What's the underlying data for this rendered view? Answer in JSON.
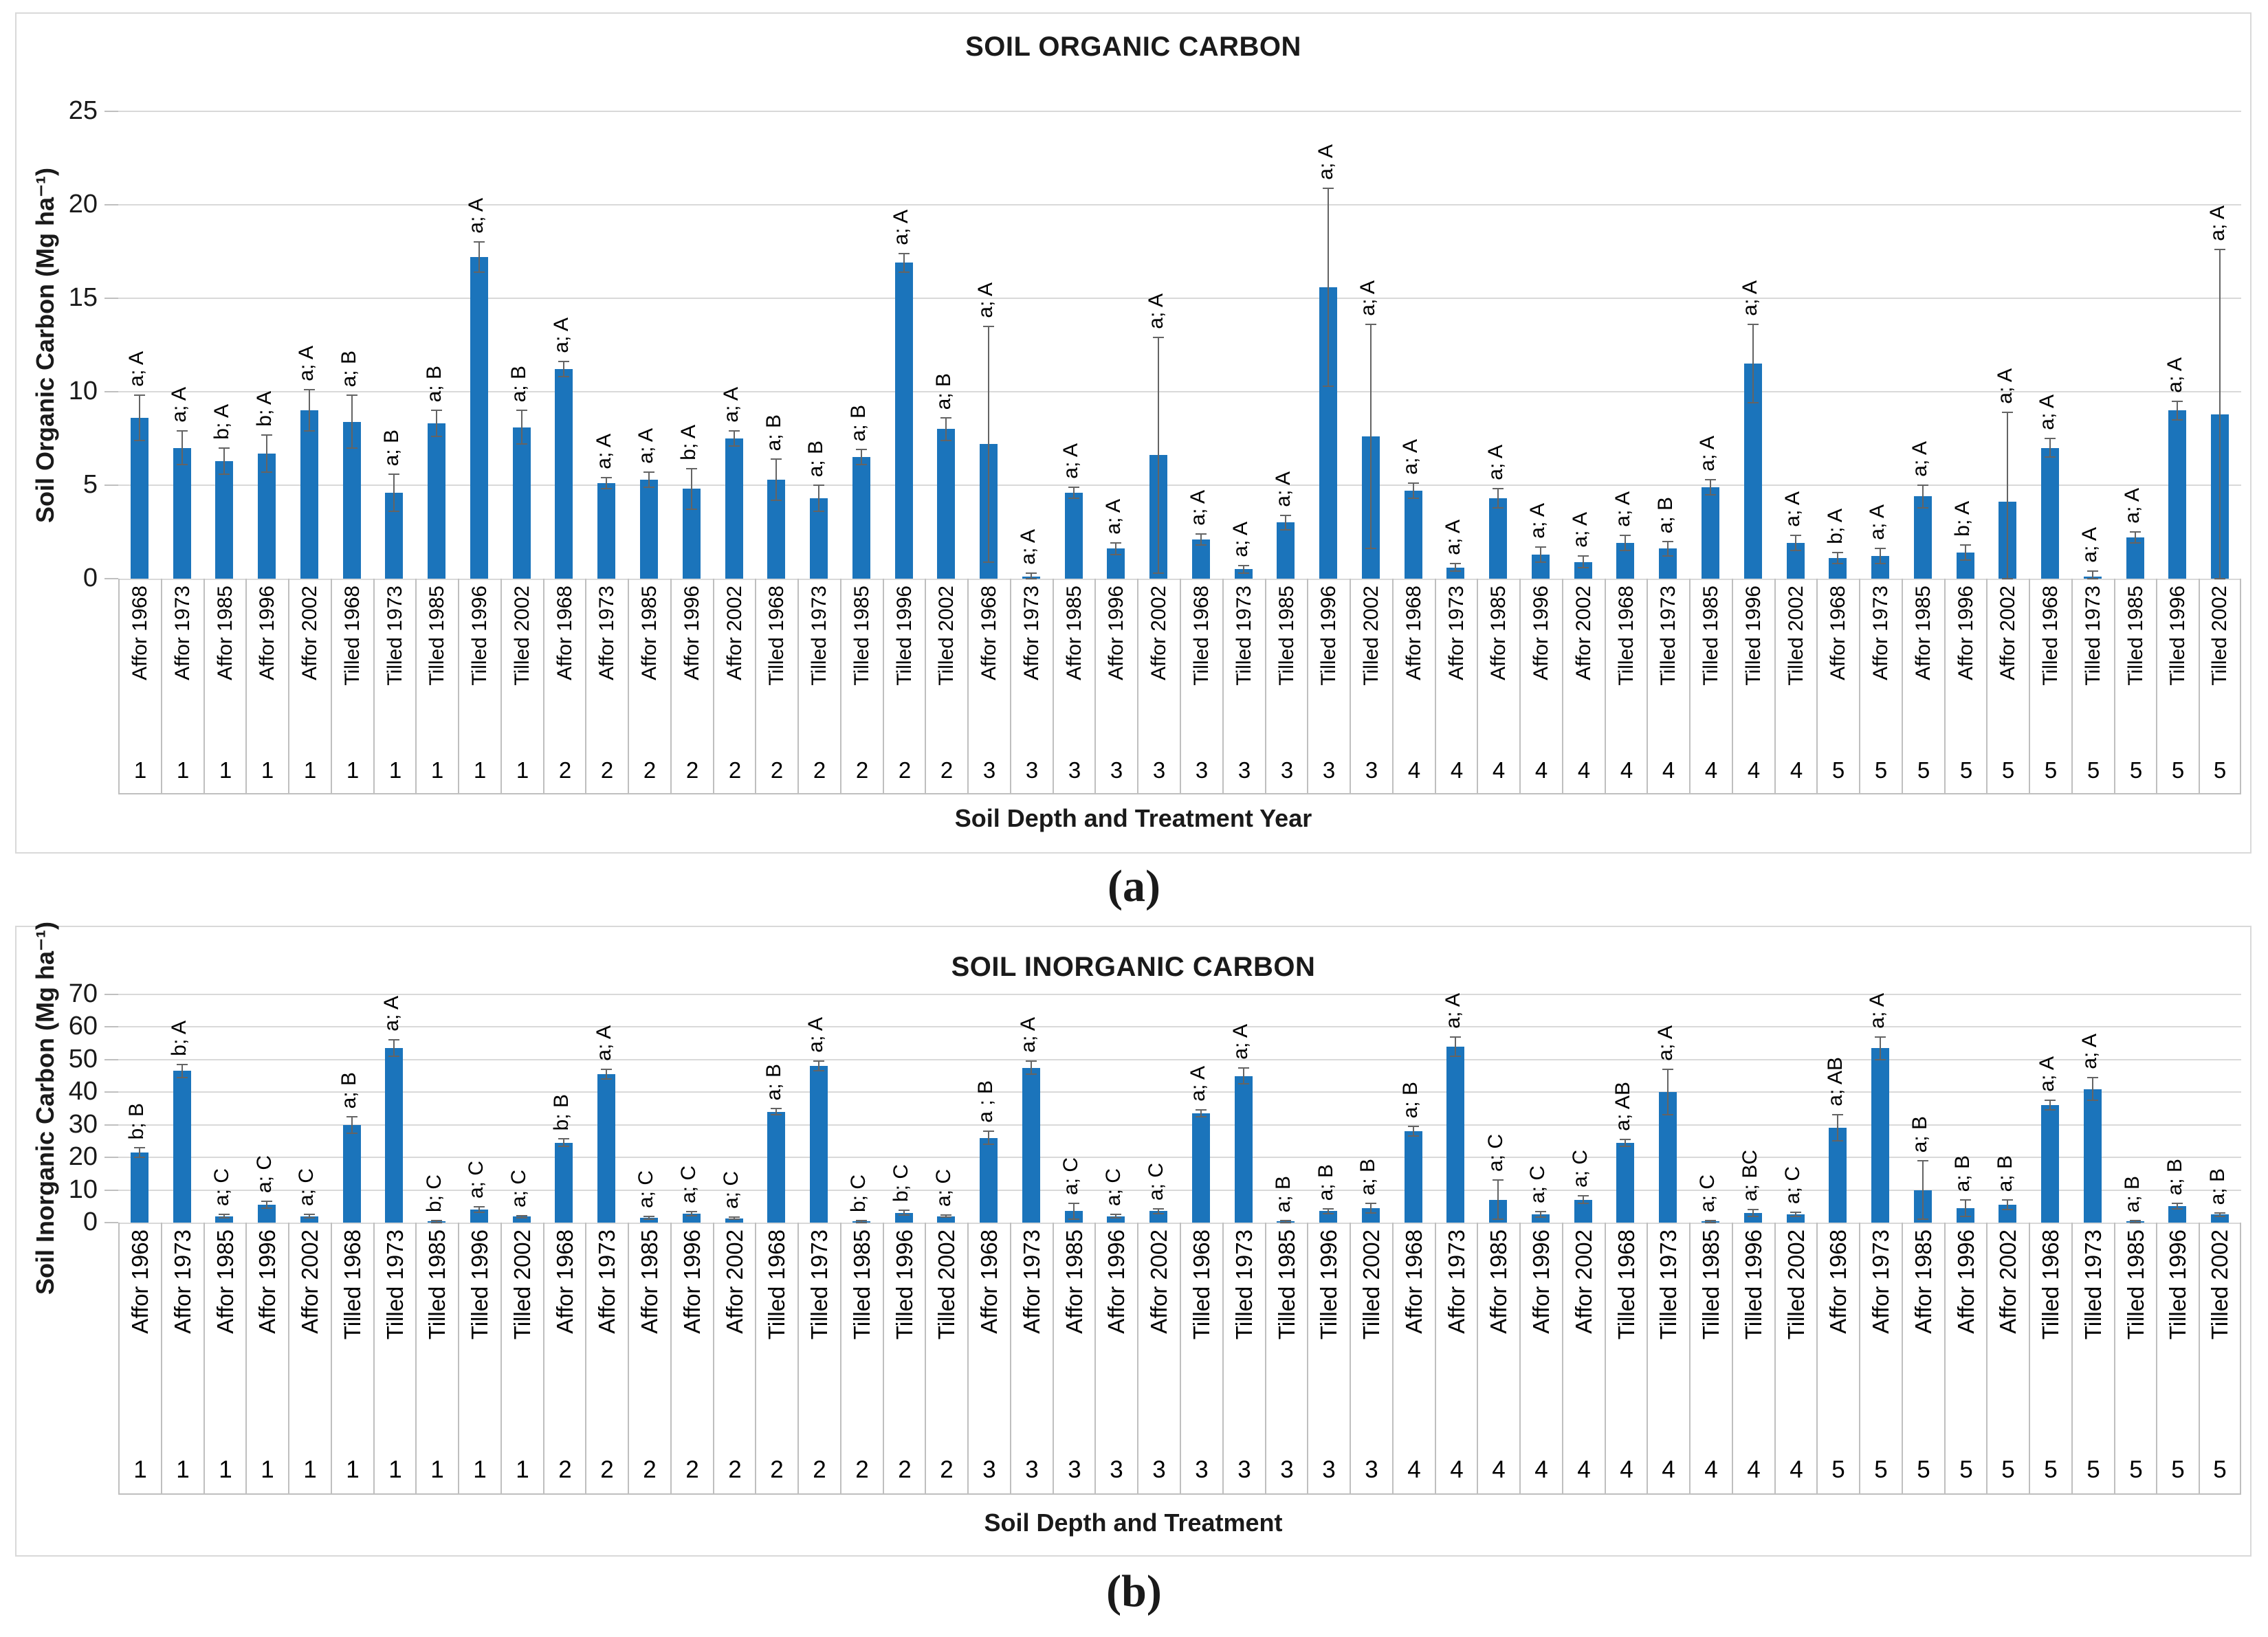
{
  "figure": {
    "caption_a": "(a)",
    "caption_b": "(b)"
  },
  "colors": {
    "bar": "#1b74bb",
    "gridline": "#d9d9d9",
    "cell_border": "#bfbfbf",
    "error_bar": "#646464",
    "text": "#000000"
  },
  "chart_data": [
    {
      "type": "bar",
      "title": "SOIL ORGANIC CARBON",
      "ylabel": "Soil Organic Carbon (Mg ha⁻¹)",
      "xlabel": "Soil Depth and Treatment Year",
      "ylim": [
        0,
        25
      ],
      "yticks": [
        "0",
        "5",
        "10",
        "15",
        "20",
        "25"
      ],
      "grid": true,
      "legend": "none",
      "bars": [
        {
          "label": "Affor 1968",
          "depth": "1",
          "value": 8.6,
          "err": 1.2,
          "note": "a; A"
        },
        {
          "label": "Affor 1973",
          "depth": "1",
          "value": 7.0,
          "err": 0.9,
          "note": "a; A"
        },
        {
          "label": "Affor 1985",
          "depth": "1",
          "value": 6.3,
          "err": 0.7,
          "note": "b; A"
        },
        {
          "label": "Affor 1996",
          "depth": "1",
          "value": 6.7,
          "err": 1.0,
          "note": "b; A"
        },
        {
          "label": "Affor 2002",
          "depth": "1",
          "value": 9.0,
          "err": 1.1,
          "note": "a; A"
        },
        {
          "label": "Tilled 1968",
          "depth": "1",
          "value": 8.4,
          "err": 1.4,
          "note": "a; B"
        },
        {
          "label": "Tilled 1973",
          "depth": "1",
          "value": 4.6,
          "err": 1.0,
          "note": "a; B"
        },
        {
          "label": "Tilled 1985",
          "depth": "1",
          "value": 8.3,
          "err": 0.7,
          "note": "a; B"
        },
        {
          "label": "Tilled 1996",
          "depth": "1",
          "value": 17.2,
          "err": 0.8,
          "note": "a; A"
        },
        {
          "label": "Tilled 2002",
          "depth": "1",
          "value": 8.1,
          "err": 0.9,
          "note": "a; B"
        },
        {
          "label": "Affor 1968",
          "depth": "2",
          "value": 11.2,
          "err": 0.4,
          "note": "a; A"
        },
        {
          "label": "Affor 1973",
          "depth": "2",
          "value": 5.1,
          "err": 0.3,
          "note": "a; A"
        },
        {
          "label": "Affor 1985",
          "depth": "2",
          "value": 5.3,
          "err": 0.4,
          "note": "a; A"
        },
        {
          "label": "Affor 1996",
          "depth": "2",
          "value": 4.8,
          "err": 1.1,
          "note": "b; A"
        },
        {
          "label": "Affor 2002",
          "depth": "2",
          "value": 7.5,
          "err": 0.4,
          "note": "a; A"
        },
        {
          "label": "Tilled 1968",
          "depth": "2",
          "value": 5.3,
          "err": 1.1,
          "note": "a; B"
        },
        {
          "label": "Tilled 1973",
          "depth": "2",
          "value": 4.3,
          "err": 0.7,
          "note": "a; B"
        },
        {
          "label": "Tilled 1985",
          "depth": "2",
          "value": 6.5,
          "err": 0.4,
          "note": "a; B"
        },
        {
          "label": "Tilled 1996",
          "depth": "2",
          "value": 16.9,
          "err": 0.5,
          "note": "a; A"
        },
        {
          "label": "Tilled 2002",
          "depth": "2",
          "value": 8.0,
          "err": 0.6,
          "note": "a; B"
        },
        {
          "label": "Affor 1968",
          "depth": "3",
          "value": 7.2,
          "err": 6.3,
          "note": "a; A"
        },
        {
          "label": "Affor 1973",
          "depth": "3",
          "value": 0.1,
          "err": 0.2,
          "note": "a; A"
        },
        {
          "label": "Affor 1985",
          "depth": "3",
          "value": 4.6,
          "err": 0.3,
          "note": "a; A"
        },
        {
          "label": "Affor 1996",
          "depth": "3",
          "value": 1.6,
          "err": 0.3,
          "note": "a; A"
        },
        {
          "label": "Affor 2002",
          "depth": "3",
          "value": 6.6,
          "err": 6.3,
          "note": "a; A"
        },
        {
          "label": "Tilled 1968",
          "depth": "3",
          "value": 2.1,
          "err": 0.3,
          "note": "a; A"
        },
        {
          "label": "Tilled 1973",
          "depth": "3",
          "value": 0.5,
          "err": 0.2,
          "note": "a; A"
        },
        {
          "label": "Tilled 1985",
          "depth": "3",
          "value": 3.0,
          "err": 0.4,
          "note": "a; A"
        },
        {
          "label": "Tilled 1996",
          "depth": "3",
          "value": 15.6,
          "err": 5.3,
          "note": "a; A"
        },
        {
          "label": "Tilled 2002",
          "depth": "3",
          "value": 7.6,
          "err": 6.0,
          "note": "a; A"
        },
        {
          "label": "Affor 1968",
          "depth": "4",
          "value": 4.7,
          "err": 0.4,
          "note": "a; A"
        },
        {
          "label": "Affor 1973",
          "depth": "4",
          "value": 0.6,
          "err": 0.2,
          "note": "a; A"
        },
        {
          "label": "Affor 1985",
          "depth": "4",
          "value": 4.3,
          "err": 0.5,
          "note": "a; A"
        },
        {
          "label": "Affor 1996",
          "depth": "4",
          "value": 1.3,
          "err": 0.4,
          "note": "a; A"
        },
        {
          "label": "Affor 2002",
          "depth": "4",
          "value": 0.9,
          "err": 0.3,
          "note": "a; A"
        },
        {
          "label": "Tilled 1968",
          "depth": "4",
          "value": 1.9,
          "err": 0.4,
          "note": "a; A"
        },
        {
          "label": "Tilled 1973",
          "depth": "4",
          "value": 1.6,
          "err": 0.4,
          "note": "a; B"
        },
        {
          "label": "Tilled 1985",
          "depth": "4",
          "value": 4.9,
          "err": 0.4,
          "note": "a; A"
        },
        {
          "label": "Tilled 1996",
          "depth": "4",
          "value": 11.5,
          "err": 2.1,
          "note": "a; A"
        },
        {
          "label": "Tilled 2002",
          "depth": "4",
          "value": 1.9,
          "err": 0.4,
          "note": "a; A"
        },
        {
          "label": "Affor 1968",
          "depth": "5",
          "value": 1.1,
          "err": 0.3,
          "note": "b; A"
        },
        {
          "label": "Affor 1973",
          "depth": "5",
          "value": 1.2,
          "err": 0.4,
          "note": "a; A"
        },
        {
          "label": "Affor 1985",
          "depth": "5",
          "value": 4.4,
          "err": 0.6,
          "note": "a; A"
        },
        {
          "label": "Affor 1996",
          "depth": "5",
          "value": 1.4,
          "err": 0.4,
          "note": "b; A"
        },
        {
          "label": "Affor 2002",
          "depth": "5",
          "value": 4.1,
          "err": 4.8,
          "note": "a; A"
        },
        {
          "label": "Tilled 1968",
          "depth": "5",
          "value": 7.0,
          "err": 0.5,
          "note": "a; A"
        },
        {
          "label": "Tilled 1973",
          "depth": "5",
          "value": 0.1,
          "err": 0.3,
          "note": "a; A"
        },
        {
          "label": "Tilled 1985",
          "depth": "5",
          "value": 2.2,
          "err": 0.3,
          "note": "a; A"
        },
        {
          "label": "Tilled 1996",
          "depth": "5",
          "value": 9.0,
          "err": 0.5,
          "note": "a; A"
        },
        {
          "label": "Tilled 2002",
          "depth": "5",
          "value": 8.8,
          "err": 8.8,
          "note": "a; A"
        }
      ]
    },
    {
      "type": "bar",
      "title": "SOIL INORGANIC CARBON",
      "ylabel": "Soil Inorganic Carbon (Mg ha⁻¹)",
      "xlabel": "Soil Depth and Treatment",
      "ylim": [
        0,
        70
      ],
      "yticks": [
        "0",
        "10",
        "20",
        "30",
        "40",
        "50",
        "60",
        "70"
      ],
      "grid": true,
      "legend": "none",
      "bars": [
        {
          "label": "Affor 1968",
          "depth": "1",
          "value": 21.5,
          "err": 1.5,
          "note": "b; B"
        },
        {
          "label": "Affor 1973",
          "depth": "1",
          "value": 46.5,
          "err": 2.0,
          "note": "b; A"
        },
        {
          "label": "Affor 1985",
          "depth": "1",
          "value": 2.0,
          "err": 0.5,
          "note": "a; C"
        },
        {
          "label": "Affor 1996",
          "depth": "1",
          "value": 5.5,
          "err": 1.0,
          "note": "a; C"
        },
        {
          "label": "Affor 2002",
          "depth": "1",
          "value": 2.0,
          "err": 0.5,
          "note": "a; C"
        },
        {
          "label": "Tilled 1968",
          "depth": "1",
          "value": 30.0,
          "err": 2.5,
          "note": "a; B"
        },
        {
          "label": "Tilled 1973",
          "depth": "1",
          "value": 53.5,
          "err": 2.5,
          "note": "a; A"
        },
        {
          "label": "Tilled 1985",
          "depth": "1",
          "value": 0.4,
          "err": 0.3,
          "note": "b; C"
        },
        {
          "label": "Tilled 1996",
          "depth": "1",
          "value": 4.0,
          "err": 0.8,
          "note": "a; C"
        },
        {
          "label": "Tilled 2002",
          "depth": "1",
          "value": 1.8,
          "err": 0.4,
          "note": "a; C"
        },
        {
          "label": "Affor 1968",
          "depth": "2",
          "value": 24.5,
          "err": 1.2,
          "note": "b; B"
        },
        {
          "label": "Affor 1973",
          "depth": "2",
          "value": 45.5,
          "err": 1.5,
          "note": "a; A"
        },
        {
          "label": "Affor 1985",
          "depth": "2",
          "value": 1.5,
          "err": 0.4,
          "note": "a; C"
        },
        {
          "label": "Affor 1996",
          "depth": "2",
          "value": 2.8,
          "err": 0.6,
          "note": "a; C"
        },
        {
          "label": "Affor 2002",
          "depth": "2",
          "value": 1.3,
          "err": 0.3,
          "note": "a; C"
        },
        {
          "label": "Tilled 1968",
          "depth": "2",
          "value": 34.0,
          "err": 1.0,
          "note": "a; B"
        },
        {
          "label": "Tilled 1973",
          "depth": "2",
          "value": 48.0,
          "err": 1.5,
          "note": "a; A"
        },
        {
          "label": "Tilled 1985",
          "depth": "2",
          "value": 0.4,
          "err": 0.3,
          "note": "b; C"
        },
        {
          "label": "Tilled 1996",
          "depth": "2",
          "value": 3.0,
          "err": 0.7,
          "note": "b; C"
        },
        {
          "label": "Tilled 2002",
          "depth": "2",
          "value": 2.0,
          "err": 0.4,
          "note": "a; C"
        },
        {
          "label": "Affor 1968",
          "depth": "3",
          "value": 26.0,
          "err": 2.0,
          "note": "a ; B"
        },
        {
          "label": "Affor 1973",
          "depth": "3",
          "value": 47.5,
          "err": 2.0,
          "note": "a; A"
        },
        {
          "label": "Affor 1985",
          "depth": "3",
          "value": 3.5,
          "err": 2.5,
          "note": "a; C"
        },
        {
          "label": "Affor 1996",
          "depth": "3",
          "value": 2.0,
          "err": 0.5,
          "note": "a; C"
        },
        {
          "label": "Affor 2002",
          "depth": "3",
          "value": 3.5,
          "err": 0.8,
          "note": "a; C"
        },
        {
          "label": "Tilled 1968",
          "depth": "3",
          "value": 33.5,
          "err": 1.0,
          "note": "a; A"
        },
        {
          "label": "Tilled 1973",
          "depth": "3",
          "value": 45.0,
          "err": 2.5,
          "note": "a; A"
        },
        {
          "label": "Tilled 1985",
          "depth": "3",
          "value": 0.4,
          "err": 0.3,
          "note": "a; B"
        },
        {
          "label": "Tilled 1996",
          "depth": "3",
          "value": 3.5,
          "err": 0.8,
          "note": "a; B"
        },
        {
          "label": "Tilled 2002",
          "depth": "3",
          "value": 4.5,
          "err": 1.5,
          "note": "a; B"
        },
        {
          "label": "Affor 1968",
          "depth": "4",
          "value": 28.0,
          "err": 1.5,
          "note": "a; B"
        },
        {
          "label": "Affor 1973",
          "depth": "4",
          "value": 54.0,
          "err": 3.0,
          "note": "a; A"
        },
        {
          "label": "Affor 1985",
          "depth": "4",
          "value": 7.0,
          "err": 6.0,
          "note": "a; C"
        },
        {
          "label": "Affor 1996",
          "depth": "4",
          "value": 2.5,
          "err": 0.8,
          "note": "a; C"
        },
        {
          "label": "Affor 2002",
          "depth": "4",
          "value": 7.0,
          "err": 1.2,
          "note": "a; C"
        },
        {
          "label": "Tilled 1968",
          "depth": "4",
          "value": 24.5,
          "err": 1.0,
          "note": "a; AB"
        },
        {
          "label": "Tilled 1973",
          "depth": "4",
          "value": 40.0,
          "err": 7.0,
          "note": "a; A"
        },
        {
          "label": "Tilled 1985",
          "depth": "4",
          "value": 0.4,
          "err": 0.3,
          "note": "a; C"
        },
        {
          "label": "Tilled 1996",
          "depth": "4",
          "value": 3.0,
          "err": 1.0,
          "note": "a; BC"
        },
        {
          "label": "Tilled 2002",
          "depth": "4",
          "value": 2.5,
          "err": 0.6,
          "note": "a; C"
        },
        {
          "label": "Affor 1968",
          "depth": "5",
          "value": 29.0,
          "err": 4.0,
          "note": "a; AB"
        },
        {
          "label": "Affor 1973",
          "depth": "5",
          "value": 53.5,
          "err": 3.5,
          "note": "a; A"
        },
        {
          "label": "Affor 1985",
          "depth": "5",
          "value": 10.0,
          "err": 9.0,
          "note": "a; B"
        },
        {
          "label": "Affor 1996",
          "depth": "5",
          "value": 4.5,
          "err": 2.5,
          "note": "a; B"
        },
        {
          "label": "Affor 2002",
          "depth": "5",
          "value": 5.5,
          "err": 1.5,
          "note": "a; B"
        },
        {
          "label": "Tilled 1968",
          "depth": "5",
          "value": 36.0,
          "err": 1.5,
          "note": "a; A"
        },
        {
          "label": "Tilled 1973",
          "depth": "5",
          "value": 41.0,
          "err": 3.5,
          "note": "a; A"
        },
        {
          "label": "Tilled 1985",
          "depth": "5",
          "value": 0.4,
          "err": 0.3,
          "note": "a; B"
        },
        {
          "label": "Tilled 1996",
          "depth": "5",
          "value": 5.0,
          "err": 0.8,
          "note": "a; B"
        },
        {
          "label": "Tilled 2002",
          "depth": "5",
          "value": 2.5,
          "err": 0.5,
          "note": "a; B"
        }
      ]
    }
  ]
}
